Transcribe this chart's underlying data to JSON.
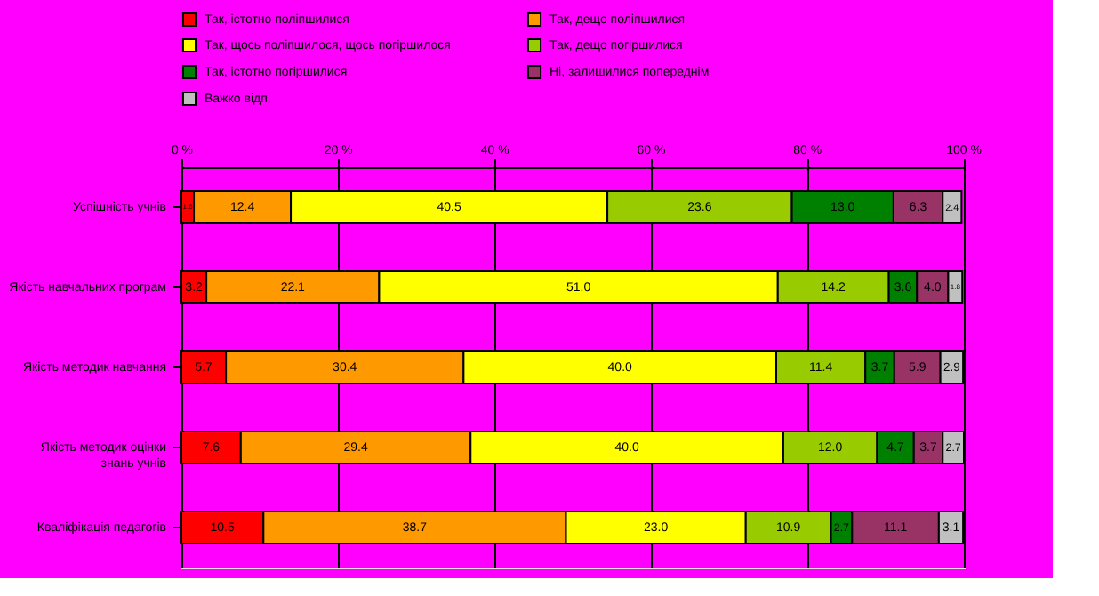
{
  "chart_data": {
    "type": "bar",
    "orientation": "horizontal",
    "stacked": true,
    "legend": "top",
    "grid": "x",
    "categories": [
      "Успішність учнів",
      "Якість навчальних програм",
      "Якість методик навчання",
      "Якість методик оцінки знань учнів",
      "Кваліфікація педагогів"
    ],
    "xlim": [
      0,
      100.1
    ],
    "xticks": [
      {
        "value": 0,
        "label": "0 %"
      },
      {
        "value": 20,
        "label": "20 %"
      },
      {
        "value": 40,
        "label": "40 %"
      },
      {
        "value": 60,
        "label": "60 %"
      },
      {
        "value": 80,
        "label": "80 %"
      },
      {
        "value": 100,
        "label": "100 %"
      }
    ],
    "series": [
      {
        "name": "Так, істотно поліпшилися",
        "color": "#ff0000",
        "values": [
          1.6,
          3.2,
          5.7,
          7.6,
          10.5
        ],
        "value_labels": [
          "1.6",
          "3.2",
          "5.7",
          "7.6",
          "10.5"
        ]
      },
      {
        "name": "Так, дещо поліпшилися",
        "color": "#ff9900",
        "values": [
          12.4,
          22.1,
          30.4,
          29.4,
          38.7
        ],
        "value_labels": [
          "12.4",
          "22.1",
          "30.4",
          "29.4",
          "38.7"
        ]
      },
      {
        "name": "Так, щось поліпшилося, щось погіршилося",
        "color": "#ffff00",
        "values": [
          40.5,
          51.0,
          40.0,
          40.0,
          23.0
        ],
        "value_labels": [
          "40.5",
          "51.0",
          "40.0",
          "40.0",
          "23.0"
        ]
      },
      {
        "name": "Так, дещо погіршилися",
        "color": "#99cc00",
        "values": [
          23.6,
          14.2,
          11.4,
          12.0,
          10.9
        ],
        "value_labels": [
          "23.6",
          "14.2",
          "11.4",
          "12.0",
          "10.9"
        ]
      },
      {
        "name": "Так, істотно погіршилися",
        "color": "#008000",
        "values": [
          13.0,
          3.6,
          3.7,
          4.7,
          2.7
        ],
        "value_labels": [
          "13.0",
          "3.6",
          "3.7",
          "4.7",
          "2.7"
        ]
      },
      {
        "name": "Ні, залишилися попереднім",
        "color": "#993366",
        "values": [
          6.3,
          4.0,
          5.9,
          3.7,
          11.1
        ],
        "value_labels": [
          "6.3",
          "4.0",
          "5.9",
          "3.7",
          "11.1"
        ]
      },
      {
        "name": "Важко відп.",
        "color": "#c0c0c0",
        "values": [
          2.4,
          1.8,
          2.9,
          2.7,
          3.1
        ],
        "value_labels": [
          "2.4",
          "1.8",
          "2.9",
          "2.7",
          "3.1"
        ]
      }
    ]
  }
}
